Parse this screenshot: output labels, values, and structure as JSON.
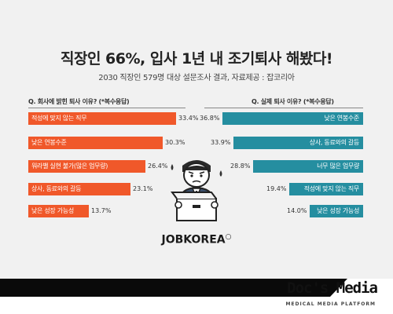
{
  "title": "직장인 66%, 입사 1년 내 조기퇴사 해봤다!",
  "subtitle": "2030 직장인 579명 대상 설문조사 결과, 자료제공 : 잡코리아",
  "chart_data": [
    {
      "type": "bar",
      "title": "Q. 회사에 밝힌 퇴사 이유? (*복수응답)",
      "categories": [
        "적성에 맞지 않는 직무",
        "낮은 연봉수준",
        "워라밸 실현 불가(많은 업무량)",
        "상사, 동료와의 갈등",
        "낮은 성장 가능성"
      ],
      "values": [
        33.4,
        30.3,
        26.4,
        23.1,
        13.7
      ],
      "value_labels": [
        "33.4%",
        "30.3%",
        "26.4%",
        "23.1%",
        "13.7%"
      ],
      "color": "#f0582a",
      "xlim": [
        0,
        35
      ]
    },
    {
      "type": "bar",
      "title": "Q. 실제 퇴사 이유? (*복수응답)",
      "categories": [
        "낮은 연봉수준",
        "상사, 동료와의 갈등",
        "너무 많은 업무량",
        "적성에 맞지 않는 직무",
        "낮은 성장 가능성"
      ],
      "values": [
        36.8,
        33.9,
        28.8,
        19.4,
        14.0
      ],
      "value_labels": [
        "36.8%",
        "33.9%",
        "28.8%",
        "19.4%",
        "14.0%"
      ],
      "color": "#258ea0",
      "xlim": [
        0,
        38
      ]
    }
  ],
  "logo": "JOBKOREA",
  "brand": {
    "name": "Doc's Media",
    "tagline": "MEDICAL MEDIA PLATFORM"
  }
}
